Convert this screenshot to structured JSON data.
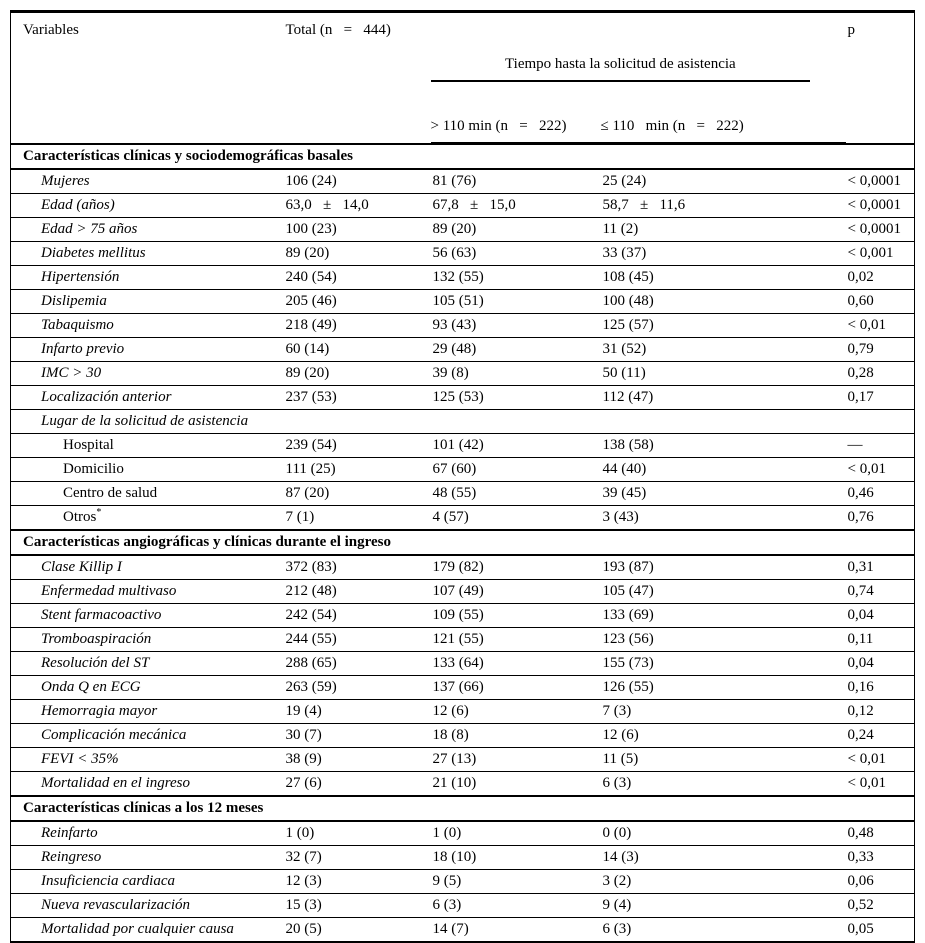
{
  "table": {
    "columns": {
      "variables": "Variables",
      "total": "Total (n   =   444)",
      "tiempo_group": "Tiempo hasta la solicitud de asistencia",
      "gt110": "> 110 min (n   =   222)",
      "le110": "≤ 110   min (n   =   222)",
      "p": "p"
    },
    "sections": [
      {
        "title": "Características clínicas y sociodemográficas basales",
        "rows": [
          {
            "style": "item",
            "label": "Mujeres",
            "total": "106 (24)",
            "gt110": "81 (76)",
            "le110": "25 (24)",
            "p": "< 0,0001"
          },
          {
            "style": "item",
            "label": "Edad (años)",
            "total": "63,0   ±   14,0",
            "gt110": "67,8   ±   15,0",
            "le110": "58,7   ±   11,6",
            "p": "< 0,0001"
          },
          {
            "style": "item",
            "label": "Edad > 75 años",
            "total": "100 (23)",
            "gt110": "89 (20)",
            "le110": "11 (2)",
            "p": "< 0,0001"
          },
          {
            "style": "item",
            "label": "Diabetes mellitus",
            "total": "89 (20)",
            "gt110": "56 (63)",
            "le110": "33 (37)",
            "p": "< 0,001"
          },
          {
            "style": "item",
            "label": "Hipertensión",
            "total": "240 (54)",
            "gt110": "132 (55)",
            "le110": "108 (45)",
            "p": "0,02"
          },
          {
            "style": "item",
            "label": "Dislipemia",
            "total": "205 (46)",
            "gt110": "105 (51)",
            "le110": "100 (48)",
            "p": "0,60"
          },
          {
            "style": "item",
            "label": "Tabaquismo",
            "total": "218 (49)",
            "gt110": "93 (43)",
            "le110": "125 (57)",
            "p": "< 0,01"
          },
          {
            "style": "item",
            "label": "Infarto previo",
            "total": "60 (14)",
            "gt110": "29 (48)",
            "le110": "31 (52)",
            "p": "0,79"
          },
          {
            "style": "item",
            "label": "IMC > 30",
            "total": "89 (20)",
            "gt110": "39 (8)",
            "le110": "50 (11)",
            "p": "0,28"
          },
          {
            "style": "item",
            "label": "Localización anterior",
            "total": "237 (53)",
            "gt110": "125 (53)",
            "le110": "112 (47)",
            "p": "0,17"
          },
          {
            "style": "subheader",
            "label": "Lugar de la solicitud de asistencia",
            "total": "",
            "gt110": "",
            "le110": "",
            "p": ""
          },
          {
            "style": "subitem",
            "label": "Hospital",
            "total": "239 (54)",
            "gt110": "101 (42)",
            "le110": "138 (58)",
            "p": "—"
          },
          {
            "style": "subitem",
            "label": "Domicilio",
            "total": "111 (25)",
            "gt110": "67 (60)",
            "le110": "44 (40)",
            "p": "< 0,01"
          },
          {
            "style": "subitem",
            "label": "Centro de salud",
            "total": "87 (20)",
            "gt110": "48 (55)",
            "le110": "39 (45)",
            "p": "0,46"
          },
          {
            "style": "subitem",
            "label": "Otros",
            "sup": "*",
            "total": "7 (1)",
            "gt110": "4 (57)",
            "le110": "3 (43)",
            "p": "0,76"
          }
        ]
      },
      {
        "title": "Características angiográficas y clínicas durante el ingreso",
        "rows": [
          {
            "style": "item",
            "label": "Clase Killip I",
            "total": "372 (83)",
            "gt110": "179 (82)",
            "le110": "193 (87)",
            "p": "0,31"
          },
          {
            "style": "item",
            "label": "Enfermedad multivaso",
            "total": "212 (48)",
            "gt110": "107 (49)",
            "le110": "105 (47)",
            "p": "0,74"
          },
          {
            "style": "item",
            "label": "Stent farmacoactivo",
            "total": "242 (54)",
            "gt110": "109 (55)",
            "le110": "133 (69)",
            "p": "0,04"
          },
          {
            "style": "item",
            "label": "Tromboaspiración",
            "total": "244 (55)",
            "gt110": "121 (55)",
            "le110": "123 (56)",
            "p": "0,11"
          },
          {
            "style": "item",
            "label": "Resolución del ST",
            "total": "288 (65)",
            "gt110": "133 (64)",
            "le110": "155 (73)",
            "p": "0,04"
          },
          {
            "style": "item",
            "label": "Onda Q en ECG",
            "total": "263 (59)",
            "gt110": "137 (66)",
            "le110": "126 (55)",
            "p": "0,16"
          },
          {
            "style": "item",
            "label": "Hemorragia mayor",
            "total": "19 (4)",
            "gt110": "12 (6)",
            "le110": "7 (3)",
            "p": "0,12"
          },
          {
            "style": "item",
            "label": "Complicación mecánica",
            "total": "30 (7)",
            "gt110": "18 (8)",
            "le110": "12 (6)",
            "p": "0,24"
          },
          {
            "style": "item",
            "label": "FEVI < 35%",
            "total": "38 (9)",
            "gt110": "27 (13)",
            "le110": "11 (5)",
            "p": "< 0,01"
          },
          {
            "style": "item",
            "label": "Mortalidad en el ingreso",
            "total": "27 (6)",
            "gt110": "21 (10)",
            "le110": "6 (3)",
            "p": "< 0,01"
          }
        ]
      },
      {
        "title": "Características clínicas a los 12 meses",
        "rows": [
          {
            "style": "item",
            "label": "Reinfarto",
            "total": "1 (0)",
            "gt110": "1 (0)",
            "le110": "0 (0)",
            "p": "0,48"
          },
          {
            "style": "item",
            "label": "Reingreso",
            "total": "32 (7)",
            "gt110": "18 (10)",
            "le110": "14 (3)",
            "p": "0,33"
          },
          {
            "style": "item",
            "label": "Insuficiencia cardiaca",
            "total": "12 (3)",
            "gt110": "9 (5)",
            "le110": "3 (2)",
            "p": "0,06"
          },
          {
            "style": "item",
            "label": "Nueva revascularización",
            "total": "15 (3)",
            "gt110": "6 (3)",
            "le110": "9 (4)",
            "p": "0,52"
          },
          {
            "style": "item",
            "label": "Mortalidad por cualquier causa",
            "total": "20 (5)",
            "gt110": "14 (7)",
            "le110": "6 (3)",
            "p": "0,05"
          }
        ]
      }
    ]
  },
  "colors": {
    "text": "#000000",
    "border": "#000000",
    "background": "#ffffff"
  }
}
